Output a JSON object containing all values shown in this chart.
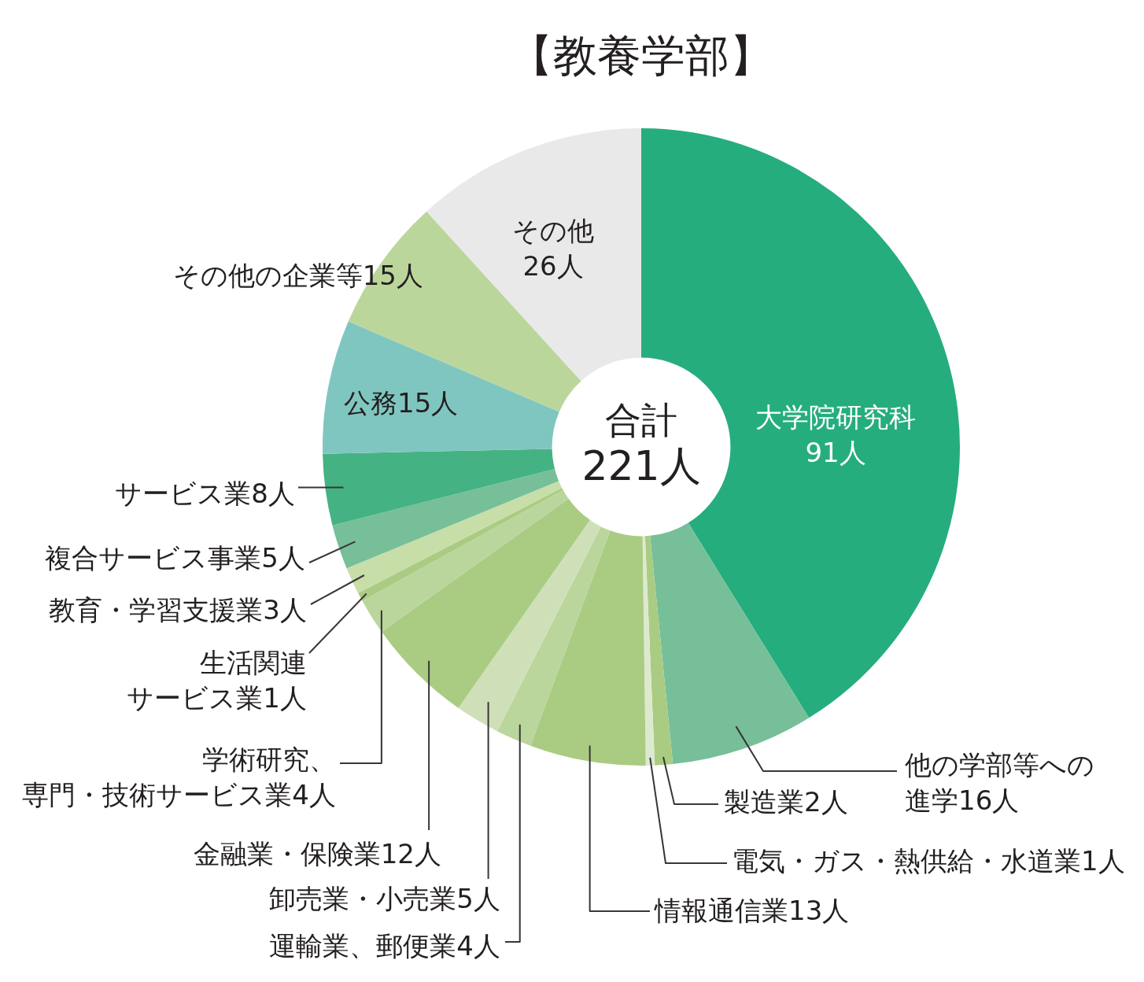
{
  "chart_data": {
    "type": "donut",
    "title": "【教養学部】",
    "categories": [
      "大学院研究科",
      "他の学部等への進学",
      "製造業",
      "電気・ガス・熱供給・水道業",
      "情報通信業",
      "運輸業、郵便業",
      "卸売業・小売業",
      "金融業・保険業",
      "学術研究、専門・技術サービス業",
      "生活関連サービス業",
      "教育・学習支援業",
      "複合サービス事業",
      "サービス業",
      "公務",
      "その他の企業等",
      "その他"
    ],
    "values": [
      91,
      16,
      2,
      1,
      13,
      4,
      5,
      12,
      4,
      1,
      3,
      5,
      8,
      15,
      15,
      26
    ],
    "value_labels": [
      "91人",
      "16人",
      "2人",
      "1人",
      "13人",
      "4人",
      "5人",
      "12人",
      "4人",
      "1人",
      "3人",
      "5人",
      "8人",
      "15人",
      "15人",
      "26人"
    ],
    "colors": [
      "#26ad7e",
      "#76bf99",
      "#a9cc82",
      "#dde9cf",
      "#a9cc82",
      "#bad69c",
      "#cfe0b8",
      "#a9cc82",
      "#bad69c",
      "#a9cc82",
      "#c7dea9",
      "#76bf99",
      "#45b283",
      "#80c6c0",
      "#bbd69b",
      "#e9e9e9"
    ],
    "annotations": [
      "合計",
      "221人"
    ],
    "legend": false
  }
}
